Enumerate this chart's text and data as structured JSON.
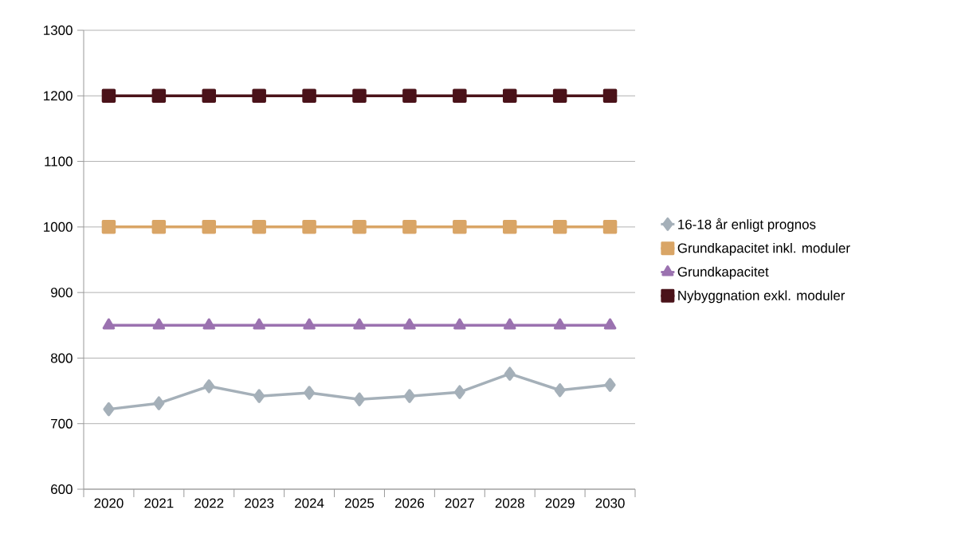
{
  "chart_data": {
    "type": "line",
    "categories": [
      "2020",
      "2021",
      "2022",
      "2023",
      "2024",
      "2025",
      "2026",
      "2027",
      "2028",
      "2029",
      "2030"
    ],
    "series": [
      {
        "name": "16-18 år enligt prognos",
        "color": "#a5b0b9",
        "marker": "diamond",
        "values": [
          722,
          731,
          757,
          742,
          747,
          737,
          742,
          748,
          776,
          751,
          759
        ]
      },
      {
        "name": "Grundkapacitet inkl. moduler",
        "color": "#d9a566",
        "marker": "square",
        "values": [
          1000,
          1000,
          1000,
          1000,
          1000,
          1000,
          1000,
          1000,
          1000,
          1000,
          1000
        ]
      },
      {
        "name": "Grundkapacitet",
        "color": "#9b72b0",
        "marker": "triangle",
        "values": [
          850,
          850,
          850,
          850,
          850,
          850,
          850,
          850,
          850,
          850,
          850
        ]
      },
      {
        "name": "Nybyggnation exkl. moduler",
        "color": "#4a1219",
        "marker": "square",
        "values": [
          1200,
          1200,
          1200,
          1200,
          1200,
          1200,
          1200,
          1200,
          1200,
          1200,
          1200
        ]
      }
    ],
    "ylim": [
      600,
      1300
    ],
    "yticks": [
      600,
      700,
      800,
      900,
      1000,
      1100,
      1200,
      1300
    ],
    "grid": "y",
    "legend": "right",
    "line_style": "solid"
  }
}
